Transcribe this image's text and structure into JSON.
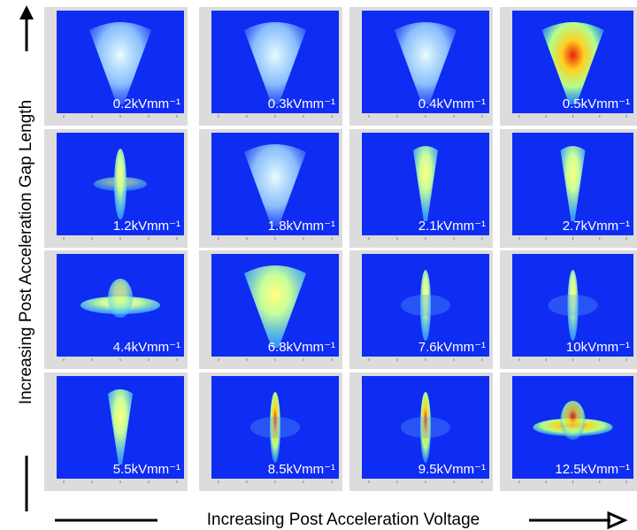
{
  "y_axis_label": "Increasing Post Acceleration Gap Length",
  "x_axis_label": "Increasing Post Acceleration Voltage",
  "panels": [
    {
      "label": "0.2kVmm⁻¹"
    },
    {
      "label": "0.3kVmm⁻¹"
    },
    {
      "label": "0.4kVmm⁻¹"
    },
    {
      "label": "0.5kVmm⁻¹"
    },
    {
      "label": "1.2kVmm⁻¹"
    },
    {
      "label": "1.8kVmm⁻¹"
    },
    {
      "label": "2.1kVmm⁻¹"
    },
    {
      "label": "2.7kVmm⁻¹"
    },
    {
      "label": "4.4kVmm⁻¹"
    },
    {
      "label": "6.8kVmm⁻¹"
    },
    {
      "label": "7.6kVmm⁻¹"
    },
    {
      "label": "10kVmm⁻¹"
    },
    {
      "label": "5.5kVmm⁻¹"
    },
    {
      "label": "8.5kVmm⁻¹"
    },
    {
      "label": "9.5kVmm⁻¹"
    },
    {
      "label": "12.5kVmm⁻¹"
    }
  ]
}
